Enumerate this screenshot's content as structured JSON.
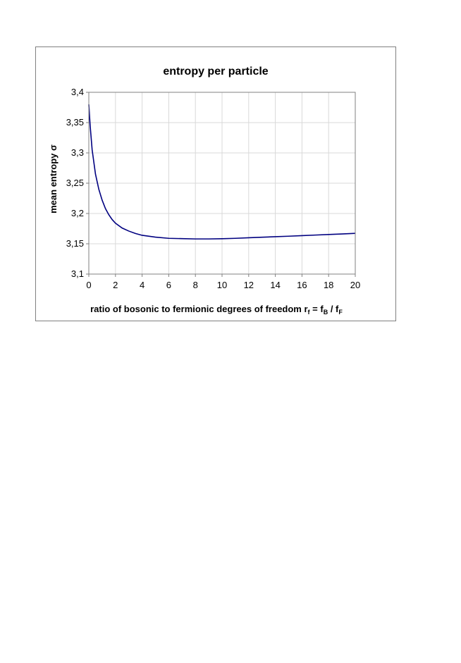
{
  "chart_data": {
    "type": "line",
    "title": "entropy per particle",
    "xlabel": {
      "main": "ratio of bosonic to fermionic degrees of freedom r",
      "sub_f": "f",
      "eq": " = f",
      "sub_b": "B",
      "slash": " / f",
      "sub_F": "F"
    },
    "ylabel": "mean entropy σ",
    "xlim": [
      0,
      20
    ],
    "ylim": [
      3.1,
      3.4
    ],
    "x_ticks": [
      0,
      2,
      4,
      6,
      8,
      10,
      12,
      14,
      16,
      18,
      20
    ],
    "x_tick_labels": [
      "0",
      "2",
      "4",
      "6",
      "8",
      "10",
      "12",
      "14",
      "16",
      "18",
      "20"
    ],
    "y_ticks": [
      3.1,
      3.15,
      3.2,
      3.25,
      3.3,
      3.35,
      3.4
    ],
    "y_tick_labels": [
      "3,1",
      "3,15",
      "3,2",
      "3,25",
      "3,3",
      "3,35",
      "3,4"
    ],
    "grid": true,
    "line_color": "#000080",
    "series": [
      {
        "x": [
          0,
          0.1,
          0.25,
          0.5,
          0.75,
          1,
          1.25,
          1.5,
          1.75,
          2,
          2.5,
          3,
          3.5,
          4,
          5,
          6,
          7,
          8,
          9,
          10,
          11,
          12,
          13,
          14,
          15,
          16,
          17,
          18,
          19,
          20
        ],
        "y": [
          3.38,
          3.345,
          3.305,
          3.265,
          3.24,
          3.222,
          3.208,
          3.198,
          3.19,
          3.184,
          3.176,
          3.171,
          3.167,
          3.164,
          3.161,
          3.159,
          3.1585,
          3.158,
          3.158,
          3.1583,
          3.159,
          3.16,
          3.1608,
          3.1617,
          3.1625,
          3.1635,
          3.1644,
          3.1653,
          3.1662,
          3.1672
        ]
      }
    ]
  }
}
